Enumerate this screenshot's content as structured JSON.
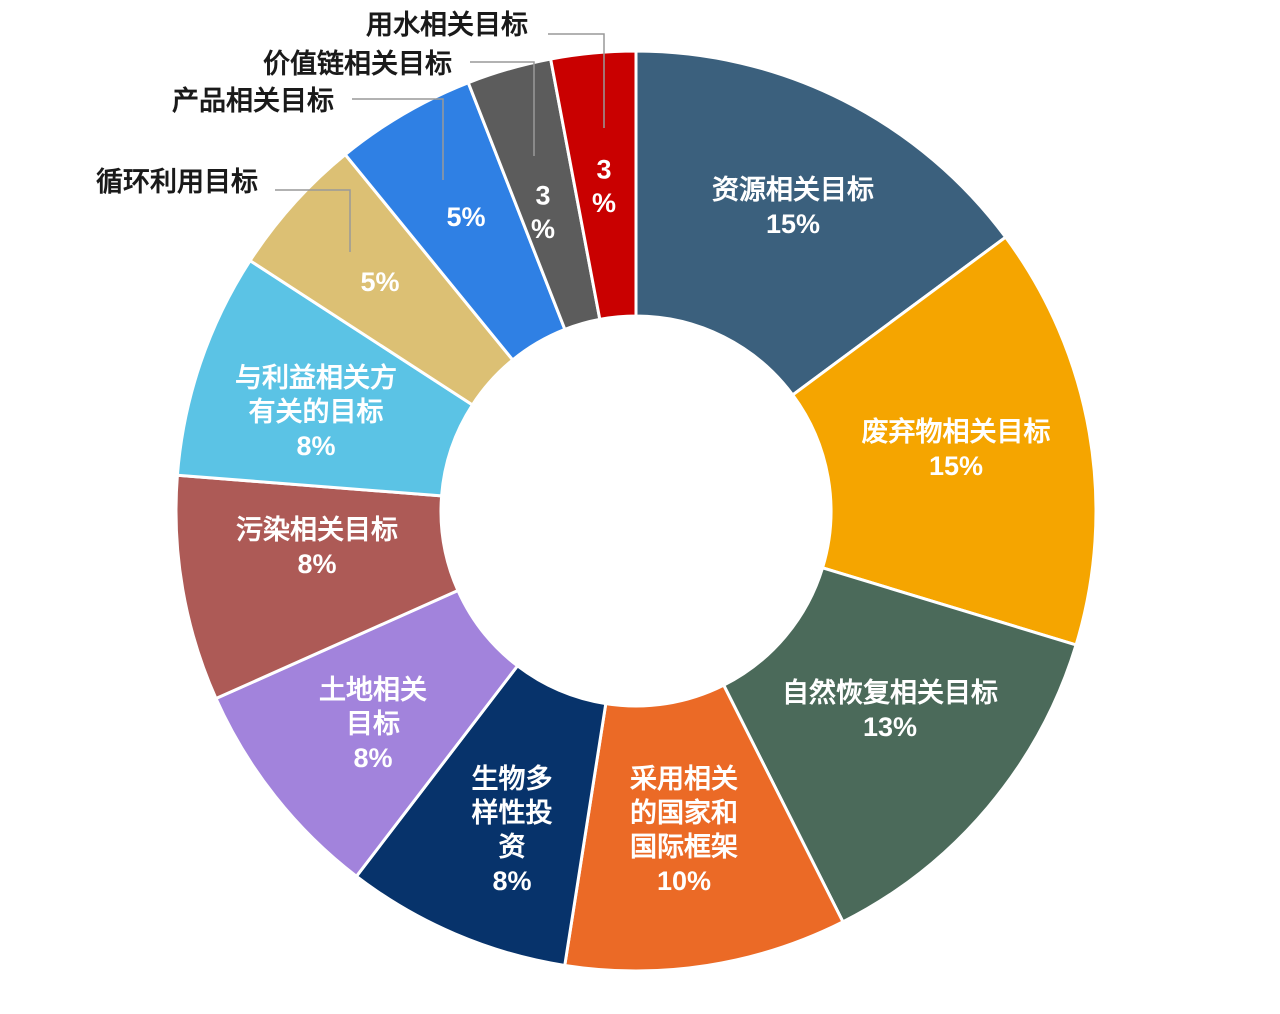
{
  "chart_data": {
    "type": "pie",
    "donut": true,
    "start_angle_deg": 0,
    "direction": "clockwise",
    "slices": [
      {
        "label": "资源相关目标",
        "value": 15,
        "value_text": "15%",
        "color": "#3b607d"
      },
      {
        "label": "废弃物相关目标",
        "value": 15,
        "value_text": "15%",
        "color": "#f5a500"
      },
      {
        "label": "自然恢复相关目标",
        "value": 13,
        "value_text": "13%",
        "color": "#4b6a5a"
      },
      {
        "label": "采用相关的国家和国际框架",
        "value": 10,
        "value_text": "10%",
        "color": "#eb6a26"
      },
      {
        "label": "生物多样性投资",
        "value": 8,
        "value_text": "8%",
        "color": "#07336b"
      },
      {
        "label": "土地相关目标",
        "value": 8,
        "value_text": "8%",
        "color": "#a283dc"
      },
      {
        "label": "污染相关目标",
        "value": 8,
        "value_text": "8%",
        "color": "#ad5a56"
      },
      {
        "label": "与利益相关方有关的目标",
        "value": 8,
        "value_text": "8%",
        "color": "#5bc3e5"
      },
      {
        "label": "循环利用目标",
        "value": 5,
        "value_text": "5%",
        "color": "#dcc074"
      },
      {
        "label": "产品相关目标",
        "value": 5,
        "value_text": "5%",
        "color": "#2f80e4"
      },
      {
        "label": "价值链相关目标",
        "value": 3,
        "value_text": "3%",
        "color": "#5c5c5c"
      },
      {
        "label": "用水相关目标",
        "value": 3,
        "value_text": "3%",
        "color": "#c90000"
      }
    ]
  }
}
